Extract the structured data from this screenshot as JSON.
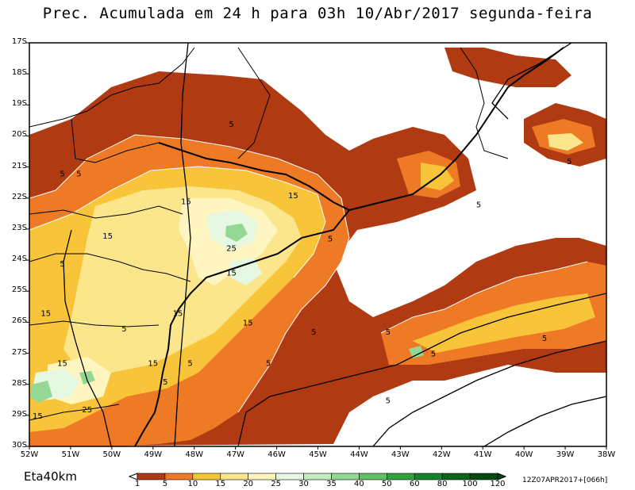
{
  "title": "Prec. Acumulada em 24 h para 03h 10/Abr/2017 segunda-feira",
  "model_label": "Eta40km",
  "run_stamp": "12Z07APR2017+[066h]",
  "lat_labels": [
    "17S",
    "18S",
    "19S",
    "20S",
    "21S",
    "22S",
    "23S",
    "24S",
    "25S",
    "26S",
    "27S",
    "28S",
    "29S",
    "30S"
  ],
  "lon_labels": [
    "52W",
    "51W",
    "50W",
    "49W",
    "48W",
    "47W",
    "46W",
    "45W",
    "44W",
    "43W",
    "42W",
    "41W",
    "40W",
    "39W",
    "38W"
  ],
  "colorbar": {
    "labels": [
      "1",
      "5",
      "10",
      "15",
      "20",
      "25",
      "30",
      "35",
      "40",
      "50",
      "60",
      "80",
      "100",
      "120"
    ],
    "colors": [
      "#ffffff",
      "#b03a12",
      "#ef7a25",
      "#f8c53a",
      "#fce68c",
      "#fff5c0",
      "#e6f7e2",
      "#c3ebc0",
      "#93d894",
      "#5ec162",
      "#2ea43a",
      "#14842a",
      "#07651c",
      "#034a12"
    ]
  },
  "contour_labels": [
    {
      "text": "5",
      "lon": -47.1,
      "lat": -19.6
    },
    {
      "text": "5",
      "lon": -51.2,
      "lat": -21.2
    },
    {
      "text": "5",
      "lon": -50.8,
      "lat": -21.2
    },
    {
      "text": "15",
      "lon": -48.2,
      "lat": -22.1
    },
    {
      "text": "15",
      "lon": -45.6,
      "lat": -21.9
    },
    {
      "text": "15",
      "lon": -50.1,
      "lat": -23.2
    },
    {
      "text": "25",
      "lon": -47.1,
      "lat": -23.6
    },
    {
      "text": "5",
      "lon": -44.7,
      "lat": -23.3
    },
    {
      "text": "5",
      "lon": -51.2,
      "lat": -24.1
    },
    {
      "text": "15",
      "lon": -47.1,
      "lat": -24.4
    },
    {
      "text": "15",
      "lon": -51.6,
      "lat": -25.7
    },
    {
      "text": "15",
      "lon": -48.4,
      "lat": -25.7
    },
    {
      "text": "5",
      "lon": -49.7,
      "lat": -26.2
    },
    {
      "text": "15",
      "lon": -46.7,
      "lat": -26.0
    },
    {
      "text": "5",
      "lon": -45.1,
      "lat": -26.3
    },
    {
      "text": "5",
      "lon": -43.3,
      "lat": -26.3
    },
    {
      "text": "5",
      "lon": -42.2,
      "lat": -27.0
    },
    {
      "text": "5",
      "lon": -39.5,
      "lat": -26.5
    },
    {
      "text": "15",
      "lon": -51.2,
      "lat": -27.3
    },
    {
      "text": "15",
      "lon": -49.0,
      "lat": -27.3
    },
    {
      "text": "5",
      "lon": -48.1,
      "lat": -27.3
    },
    {
      "text": "5",
      "lon": -46.2,
      "lat": -27.3
    },
    {
      "text": "5",
      "lon": -48.7,
      "lat": -27.9
    },
    {
      "text": "5",
      "lon": -43.3,
      "lat": -28.5
    },
    {
      "text": "25",
      "lon": -50.6,
      "lat": -28.8
    },
    {
      "text": "15",
      "lon": -51.8,
      "lat": -29.0
    },
    {
      "text": "5",
      "lon": -41.1,
      "lat": -22.2
    },
    {
      "text": "5",
      "lon": -38.9,
      "lat": -20.8
    }
  ]
}
